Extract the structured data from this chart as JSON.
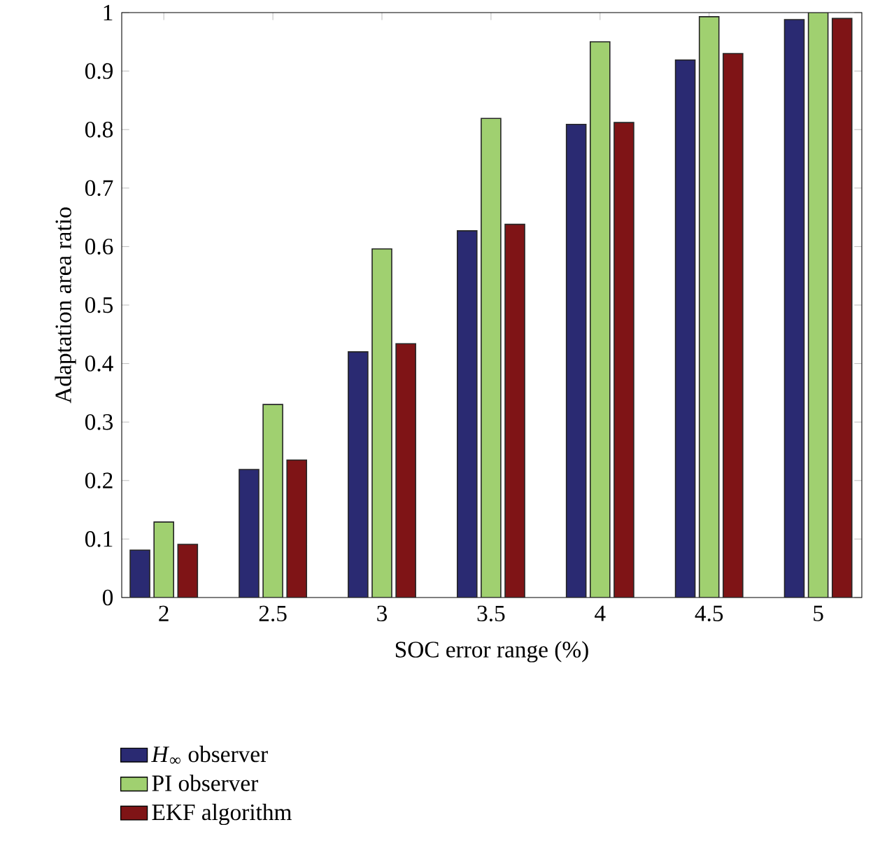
{
  "chart_data": {
    "type": "bar",
    "xlabel": "SOC error range (%)",
    "ylabel": "Adaptation area ratio",
    "categories": [
      "2",
      "2.5",
      "3",
      "3.5",
      "4",
      "4.5",
      "5"
    ],
    "series": [
      {
        "name": "*H*$_{∞}$ observer",
        "color": "#2a2a72",
        "values": [
          0.081,
          0.219,
          0.42,
          0.627,
          0.809,
          0.919,
          0.988
        ]
      },
      {
        "name": "PI observer",
        "color": "#a0d070",
        "values": [
          0.129,
          0.33,
          0.596,
          0.819,
          0.95,
          0.993,
          1.0
        ]
      },
      {
        "name": "EKF algorithm",
        "color": "#7f1416",
        "values": [
          0.091,
          0.235,
          0.434,
          0.638,
          0.812,
          0.93,
          0.99
        ]
      }
    ],
    "ylim": [
      0,
      1
    ],
    "yticks": [
      0,
      0.1,
      0.2,
      0.3,
      0.4,
      0.5,
      0.6,
      0.7,
      0.8,
      0.9,
      1
    ],
    "grid": false,
    "legend": "bottom left"
  }
}
